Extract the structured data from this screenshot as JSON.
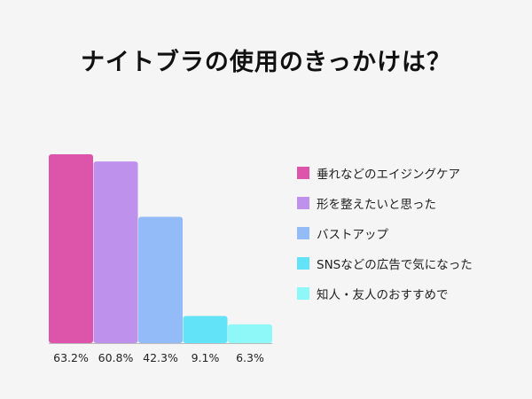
{
  "chart_data": {
    "type": "bar",
    "title": "ナイトブラの使用のきっかけは？",
    "categories": [
      "垂れなどのエイジングケア",
      "形を整えたいと思った",
      "バストアップ",
      "SNSなどの広告で気になった",
      "知人・友人のおすすめで"
    ],
    "values": [
      63.2,
      60.8,
      42.3,
      9.1,
      6.3
    ],
    "value_labels": [
      "63.2%",
      "60.8%",
      "42.3%",
      "9.1%",
      "6.3%"
    ],
    "colors": [
      "#dd55aa",
      "#be91ec",
      "#93bbf8",
      "#63e3f8",
      "#8ef7f7"
    ],
    "ylim": [
      0,
      63.2
    ],
    "xlabel": "",
    "ylabel": "",
    "grid": false,
    "legend_position": "right"
  }
}
